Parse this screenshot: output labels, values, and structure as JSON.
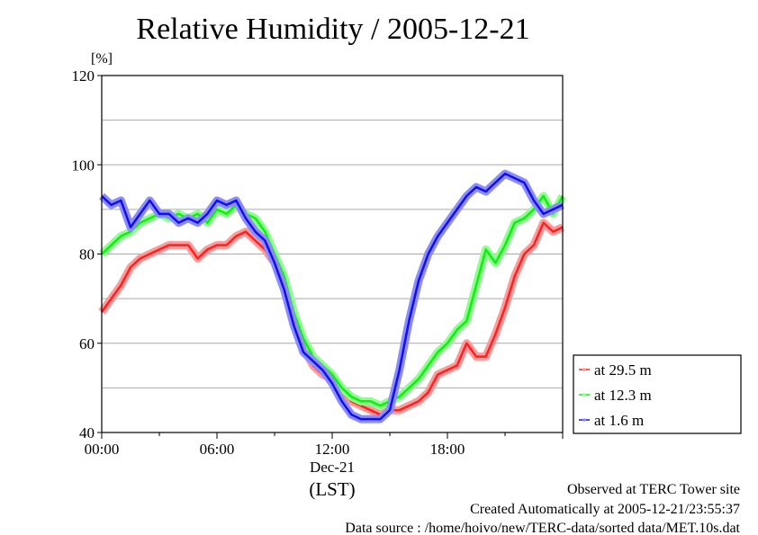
{
  "chart_data": {
    "type": "line",
    "title": "Relative Humidity / 2005-12-21",
    "ylabel": "[%]",
    "xlabel": "(LST)",
    "date_label": "Dec-21",
    "ylim": [
      40,
      120
    ],
    "xlim": [
      0,
      24
    ],
    "yticks": [
      40,
      60,
      80,
      100,
      120
    ],
    "ygrid": [
      50,
      60,
      70,
      80,
      90,
      100,
      110
    ],
    "xticks": [
      {
        "v": 0,
        "label": "00:00"
      },
      {
        "v": 6,
        "label": "06:00"
      },
      {
        "v": 12,
        "label": "12:00"
      },
      {
        "v": 18,
        "label": "18:00"
      }
    ],
    "grid": true,
    "legend_position": "right",
    "x": [
      0,
      0.5,
      1,
      1.5,
      2,
      2.5,
      3,
      3.5,
      4,
      4.5,
      5,
      5.5,
      6,
      6.5,
      7,
      7.5,
      8,
      8.5,
      9,
      9.5,
      10,
      10.5,
      11,
      11.5,
      12,
      12.5,
      13,
      13.5,
      14,
      14.5,
      15,
      15.5,
      16,
      16.5,
      17,
      17.5,
      18,
      18.5,
      19,
      19.5,
      20,
      20.5,
      21,
      21.5,
      22,
      22.5,
      23,
      23.5,
      24
    ],
    "series": [
      {
        "name": "at 29.5 m",
        "color": "#ff2020",
        "halo": "#ff9a9a",
        "values": [
          67,
          70,
          73,
          77,
          79,
          80,
          81,
          82,
          82,
          82,
          79,
          81,
          82,
          82,
          84,
          85,
          83,
          81,
          78,
          73,
          66,
          59,
          55,
          53,
          52,
          49,
          47,
          46,
          45,
          44,
          45,
          45,
          46,
          47,
          49,
          53,
          54,
          55,
          60,
          57,
          57,
          62,
          68,
          75,
          80,
          82,
          87,
          85,
          86
        ]
      },
      {
        "name": "at 12.3 m",
        "color": "#10ee10",
        "halo": "#8cff8c",
        "values": [
          80,
          82,
          84,
          85,
          87,
          88,
          89,
          88,
          89,
          88,
          89,
          87,
          90,
          89,
          91,
          89,
          88,
          85,
          80,
          75,
          67,
          61,
          57,
          55,
          53,
          50,
          48,
          47,
          47,
          46,
          47,
          48,
          50,
          52,
          55,
          58,
          60,
          63,
          65,
          73,
          81,
          78,
          82,
          87,
          88,
          90,
          93,
          89,
          93
        ]
      },
      {
        "name": "at 1.6 m",
        "color": "#1010ee",
        "halo": "#8c8cff",
        "values": [
          93,
          91,
          92,
          86,
          89,
          92,
          89,
          89,
          87,
          88,
          87,
          89,
          92,
          91,
          92,
          88,
          85,
          83,
          78,
          72,
          64,
          58,
          56,
          54,
          51,
          47,
          44,
          43,
          43,
          43,
          45,
          54,
          65,
          74,
          80,
          84,
          87,
          90,
          93,
          95,
          94,
          96,
          98,
          97,
          96,
          92,
          89,
          90,
          91
        ]
      }
    ]
  },
  "footer": {
    "line1": "Observed at TERC Tower site",
    "line2": "Created Automatically at 2005-12-21/23:55:37",
    "line3": "Data source : /home/hoivo/new/TERC-data/sorted  data/MET.10s.dat"
  }
}
